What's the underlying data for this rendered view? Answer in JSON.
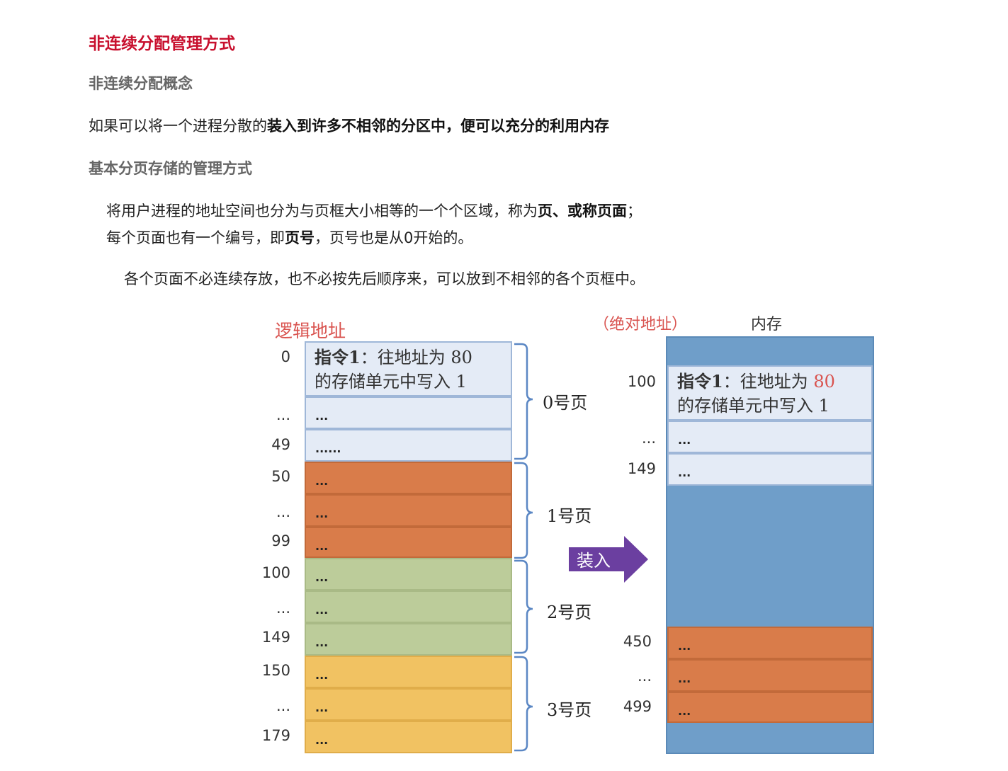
{
  "title": "非连续分配管理方式",
  "section1": {
    "heading": "非连续分配概念",
    "para_plain": "如果可以将一个进程分散的",
    "para_bold": "装入到许多不相邻的分区中，便可以充分的利用内存"
  },
  "section2": {
    "heading": "基本分页存储的管理方式",
    "line1_plain": "将用户进程的地址空间也分为与页框大小相等的一个个区域，称为",
    "line1_bold": "页、或称页面",
    "line1_end": "；",
    "line2_plain1": "每个页面也有一个编号，即",
    "line2_bold": "页号",
    "line2_plain2": "，页号也是从0开始的。",
    "line3": "各个页面不必连续存放，也不必按先后顺序来，可以放到不相邻的各个页框中。"
  },
  "diagram": {
    "logical_label": "逻辑地址",
    "absolute_label": "（绝对地址）",
    "memory_label": "内存",
    "load_label": "装入",
    "instr_bold": "指令1",
    "instr_line1_rest": "：往地址为 80",
    "instr_line2": "的存储单元中写入 1",
    "mem_instr_rest": "：往地址为 ",
    "mem_instr_addr": "80",
    "mem_instr_line2": "的存储单元中写入 1",
    "dots": "...",
    "dots6": "......",
    "logical_addresses": [
      "0",
      "...",
      "49",
      "50",
      "...",
      "99",
      "100",
      "...",
      "149",
      "150",
      "...",
      "179"
    ],
    "pages": [
      "0号页",
      "1号页",
      "2号页",
      "3号页"
    ],
    "memory_addresses": [
      "100",
      "...",
      "149",
      "450",
      "...",
      "499"
    ],
    "colors": {
      "page0": "#e4ebf6",
      "page1": "#d97c4a",
      "page2": "#bccc9a",
      "page3": "#f1c262",
      "memory": "#6f9ec9",
      "arrow": "#6b3fa0",
      "red": "#c8102e"
    }
  }
}
